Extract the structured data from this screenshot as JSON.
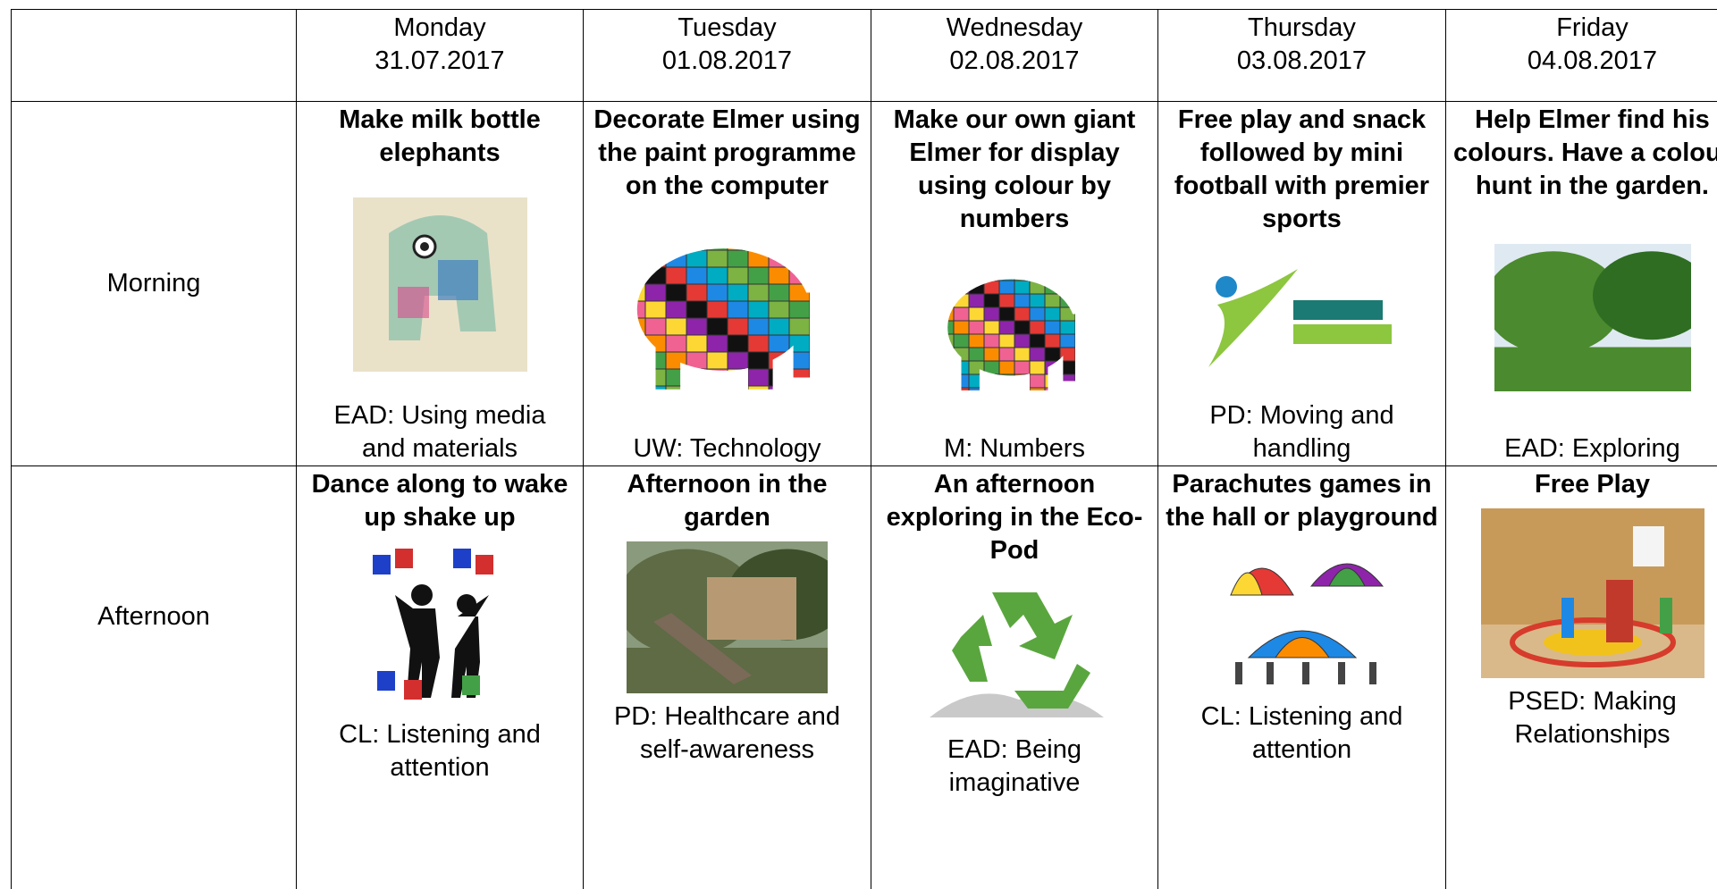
{
  "header": {
    "days": [
      {
        "day": "Monday",
        "date": "31.07.2017"
      },
      {
        "day": "Tuesday",
        "date": "01.08.2017"
      },
      {
        "day": "Wednesday",
        "date": "02.08.2017"
      },
      {
        "day": "Thursday",
        "date": "03.08.2017"
      },
      {
        "day": "Friday",
        "date": "04.08.2017"
      }
    ]
  },
  "rows": [
    {
      "label": "Morning",
      "cells": [
        {
          "activity": "Make milk bottle elephants",
          "area": "EAD: Using media and materials"
        },
        {
          "activity": "Decorate Elmer using the paint programme on the computer",
          "area": "UW: Technology"
        },
        {
          "activity": "Make our own giant Elmer for display using colour by numbers",
          "area": "M: Numbers"
        },
        {
          "activity": "Free play and snack followed by mini football with premier sports",
          "area": "PD: Moving and handling"
        },
        {
          "activity": "Help Elmer find his colours. Have a colour hunt in the garden.",
          "area": "EAD: Exploring"
        }
      ]
    },
    {
      "label": "Afternoon",
      "cells": [
        {
          "activity": "Dance along to wake up shake up",
          "area": "CL: Listening and attention"
        },
        {
          "activity": "Afternoon in the garden",
          "area": "PD: Healthcare and self-awareness"
        },
        {
          "activity": "An afternoon exploring in the Eco-Pod",
          "area": "EAD: Being imaginative"
        },
        {
          "activity": "Parachutes games in the hall or playground",
          "area": "CL: Listening and attention"
        },
        {
          "activity": "Free Play",
          "area": "PSED: Making Relationships"
        }
      ]
    }
  ]
}
